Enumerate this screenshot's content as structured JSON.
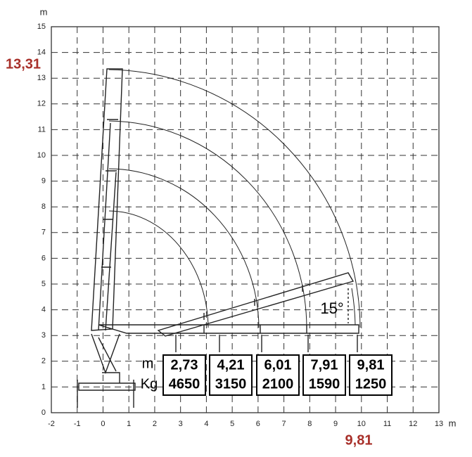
{
  "axis": {
    "y_unit": "m",
    "x_unit": "m",
    "yticks": [
      "0",
      "1",
      "2",
      "3",
      "4",
      "5",
      "6",
      "7",
      "8",
      "9",
      "10",
      "11",
      "12",
      "13",
      "14",
      "15"
    ],
    "xticks": [
      "-2",
      "-1",
      "0",
      "1",
      "2",
      "3",
      "4",
      "5",
      "6",
      "7",
      "8",
      "9",
      "10",
      "11",
      "12",
      "13"
    ]
  },
  "max_height": "13,31",
  "max_reach": "9,81",
  "angle": "15°",
  "table": {
    "row_labels": [
      "m",
      "Kg"
    ],
    "columns": [
      [
        "2,73",
        "4650"
      ],
      [
        "4,21",
        "3150"
      ],
      [
        "6,01",
        "2100"
      ],
      [
        "7,91",
        "1590"
      ],
      [
        "9,81",
        "1250"
      ]
    ]
  }
}
